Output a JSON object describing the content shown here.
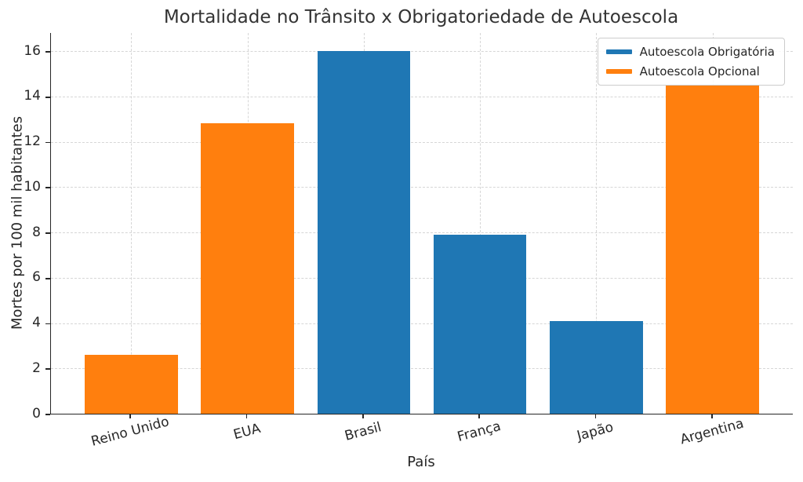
{
  "chart_data": {
    "type": "bar",
    "title": "Mortalidade no Trânsito x Obrigatoriedade de Autoescola",
    "xlabel": "País",
    "ylabel": "Mortes por 100 mil habitantes",
    "categories": [
      "Reino Unido",
      "EUA",
      "Brasil",
      "França",
      "Japão",
      "Argentina"
    ],
    "values": [
      2.6,
      12.8,
      16.0,
      7.9,
      4.1,
      14.5
    ],
    "bar_groups": [
      "opcional",
      "opcional",
      "obrigatoria",
      "obrigatoria",
      "obrigatoria",
      "opcional"
    ],
    "legend": [
      {
        "key": "obrigatoria",
        "label": "Autoescola Obrigatória",
        "color": "#1f77b4"
      },
      {
        "key": "opcional",
        "label": "Autoescola Opcional",
        "color": "#ff7f0e"
      }
    ],
    "legend_position": "upper right",
    "ylim": [
      0,
      16.8
    ],
    "yticks": [
      0,
      2,
      4,
      6,
      8,
      10,
      12,
      14,
      16
    ],
    "grid": true,
    "grid_style": "dashed",
    "bar_width_fraction": 0.8
  }
}
